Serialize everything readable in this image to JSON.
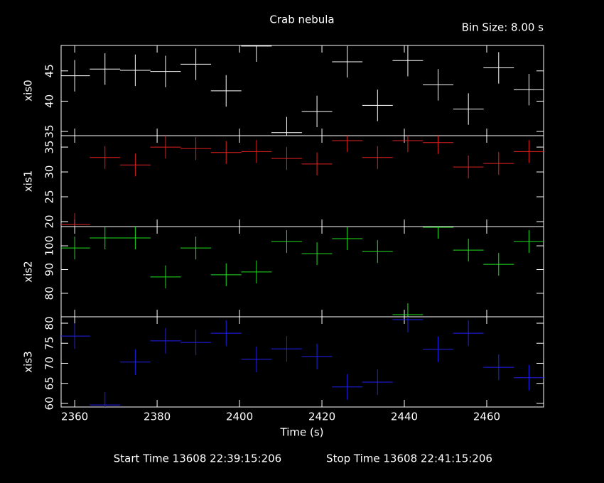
{
  "chart_data": {
    "type": "errorbar",
    "title": "Crab nebula",
    "bin_size_label": "Bin Size: 8.00 s",
    "xlabel": "Time (s)",
    "footer": [
      "Start Time 13608 22:39:15:206",
      "Stop Time 13608 22:41:15:206"
    ],
    "x": [
      2360,
      2367.35,
      2374.7,
      2382.05,
      2389.4,
      2396.75,
      2404.1,
      2411.45,
      2418.8,
      2426.15,
      2433.5,
      2440.85,
      2448.2,
      2455.55,
      2462.9,
      2470.25
    ],
    "xerr": 3.7,
    "xlim": [
      2356.7,
      2473.8
    ],
    "xticks": [
      2360,
      2380,
      2400,
      2420,
      2440,
      2460
    ],
    "series": [
      {
        "name": "xis0",
        "color": "#ffffff",
        "yerr": 2.6,
        "ylim": [
          34.3,
          49.2
        ],
        "yticks": [
          35,
          40,
          45
        ],
        "values": [
          44.2,
          45.3,
          45.1,
          44.9,
          46.1,
          41.7,
          49.1,
          34.8,
          38.3,
          46.5,
          39.3,
          46.7,
          42.7,
          38.7,
          45.5,
          41.9
        ]
      },
      {
        "name": "xis1",
        "color": "#e02020",
        "yerr": 2.3,
        "ylim": [
          19.0,
          37.3
        ],
        "yticks": [
          20,
          25,
          30,
          35
        ],
        "values": [
          19.4,
          32.9,
          31.4,
          35.0,
          34.7,
          33.9,
          34.1,
          32.7,
          31.6,
          36.3,
          32.9,
          36.3,
          35.9,
          31.0,
          31.7,
          34.1
        ]
      },
      {
        "name": "xis2",
        "color": "#20e020",
        "yerr": 4.8,
        "ylim": [
          70.1,
          108.1
        ],
        "yticks": [
          80,
          90,
          100
        ],
        "values": [
          99.1,
          103.3,
          103.3,
          86.9,
          99.1,
          87.8,
          89.0,
          101.8,
          96.7,
          103.0,
          97.6,
          71.0,
          107.8,
          98.2,
          92.2,
          101.8
        ]
      },
      {
        "name": "xis3",
        "color": "#2020f0",
        "yerr": 3.2,
        "ylim": [
          59.1,
          81.6
        ],
        "yticks": [
          60,
          65,
          70,
          75,
          80
        ],
        "values": [
          76.8,
          59.6,
          70.3,
          75.6,
          75.2,
          77.5,
          71.0,
          73.6,
          71.7,
          64.1,
          65.3,
          80.9,
          73.5,
          77.5,
          69.0,
          66.4
        ]
      }
    ]
  }
}
